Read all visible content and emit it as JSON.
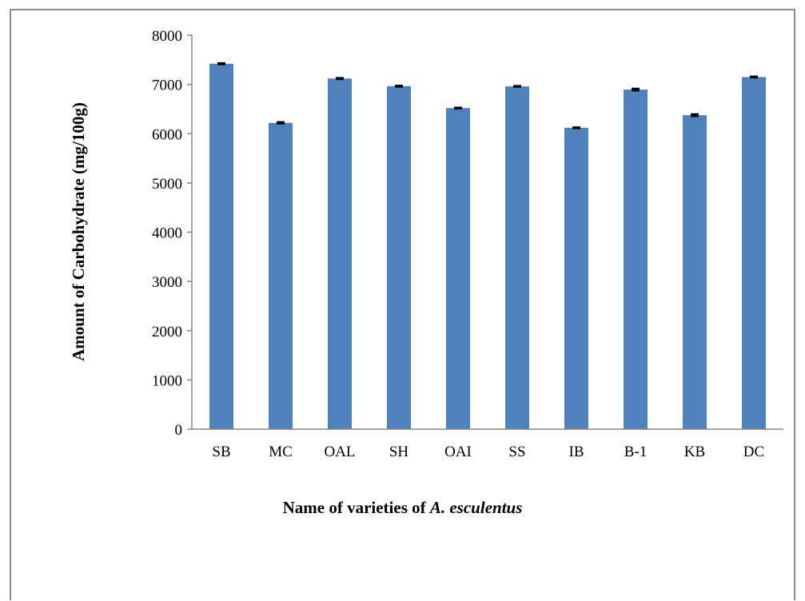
{
  "chart_data": {
    "type": "bar",
    "categories": [
      "SB",
      "MC",
      "OAL",
      "SH",
      "OAI",
      "SS",
      "IB",
      "B-1",
      "KB",
      "DC"
    ],
    "values": [
      7420,
      6220,
      7120,
      6965,
      6520,
      6960,
      6120,
      6895,
      6375,
      7150
    ],
    "errors": [
      12,
      15,
      12,
      12,
      10,
      10,
      10,
      20,
      20,
      12
    ],
    "ylim": [
      0,
      8000
    ],
    "yticks": [
      0,
      1000,
      2000,
      3000,
      4000,
      5000,
      6000,
      7000,
      8000
    ],
    "ylabel": "Amount of Carbohydrate (mg/100g)",
    "xlabel_prefix": "Name of varieties of ",
    "xlabel_species": "A. esculentus",
    "bar_color": "#4f81bd",
    "grid": false,
    "legend": "none"
  }
}
